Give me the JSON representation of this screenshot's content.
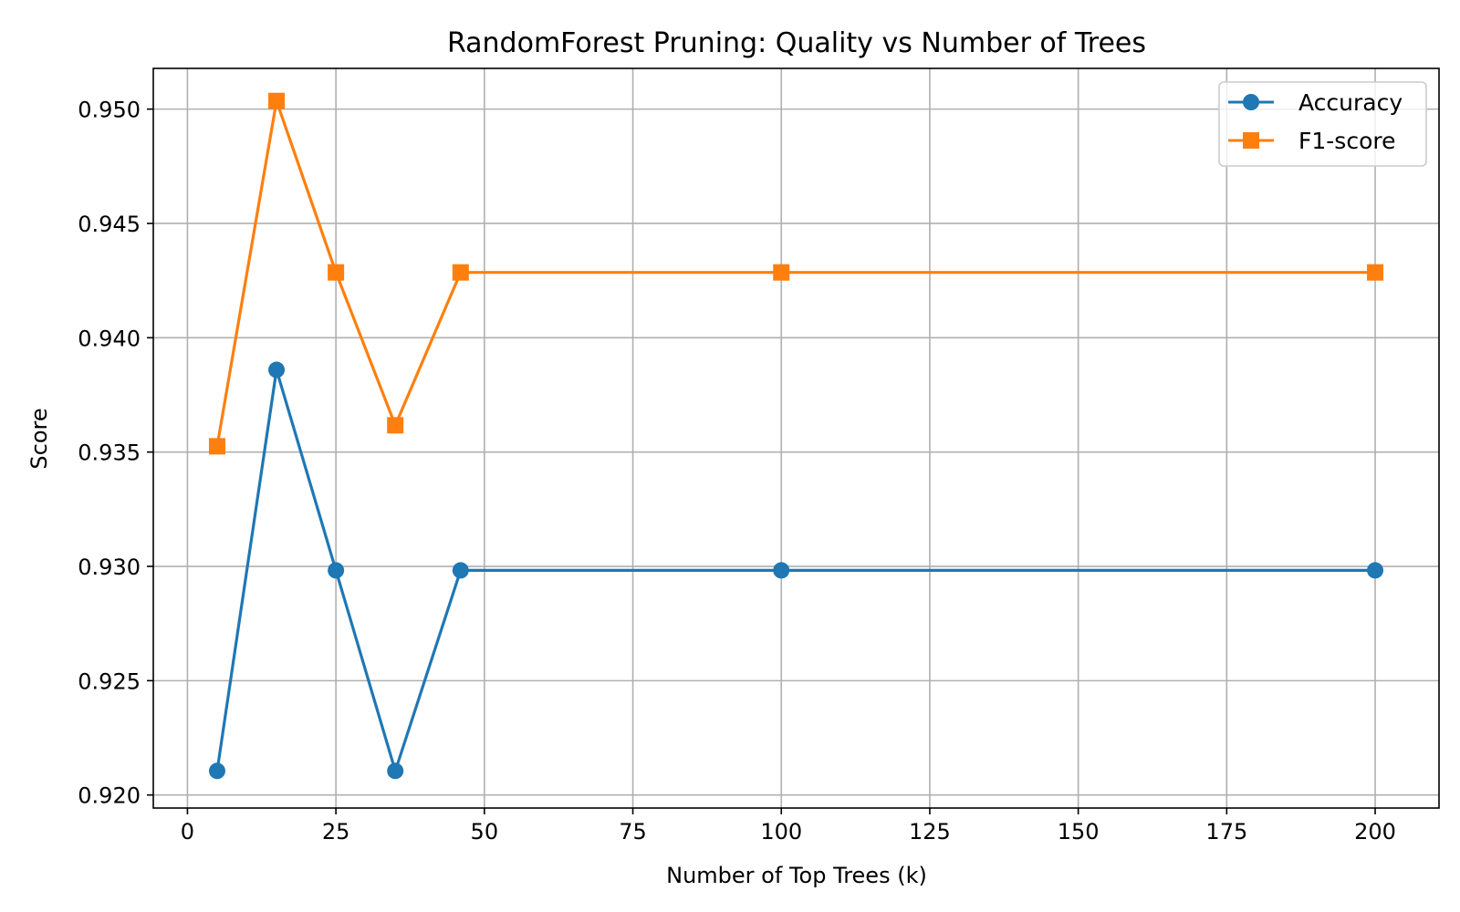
{
  "chart_data": {
    "type": "line",
    "title": "RandomForest Pruning: Quality vs Number of Trees",
    "xlabel": "Number of Top Trees (k)",
    "ylabel": "Score",
    "x": [
      5,
      15,
      25,
      35,
      46,
      100,
      200
    ],
    "series": [
      {
        "name": "Accuracy",
        "marker": "circle",
        "color": "#1f77b4",
        "values": [
          0.921053,
          0.938596,
          0.929825,
          0.921053,
          0.929825,
          0.929825,
          0.929825
        ]
      },
      {
        "name": "F1-score",
        "marker": "square",
        "color": "#ff7f0e",
        "values": [
          0.935252,
          0.950355,
          0.942857,
          0.93617,
          0.942857,
          0.942857,
          0.942857
        ]
      }
    ],
    "xlim": [
      -5.75,
      210.75
    ],
    "ylim": [
      0.91943,
      0.95178
    ],
    "xticks": [
      0,
      25,
      50,
      75,
      100,
      125,
      150,
      175,
      200
    ],
    "xtick_labels": [
      "0",
      "25",
      "50",
      "75",
      "100",
      "125",
      "150",
      "175",
      "200"
    ],
    "yticks": [
      0.92,
      0.925,
      0.93,
      0.935,
      0.94,
      0.945,
      0.95
    ],
    "ytick_labels": [
      "0.920",
      "0.925",
      "0.930",
      "0.935",
      "0.940",
      "0.945",
      "0.950"
    ],
    "grid": true,
    "legend_position": "upper right"
  }
}
